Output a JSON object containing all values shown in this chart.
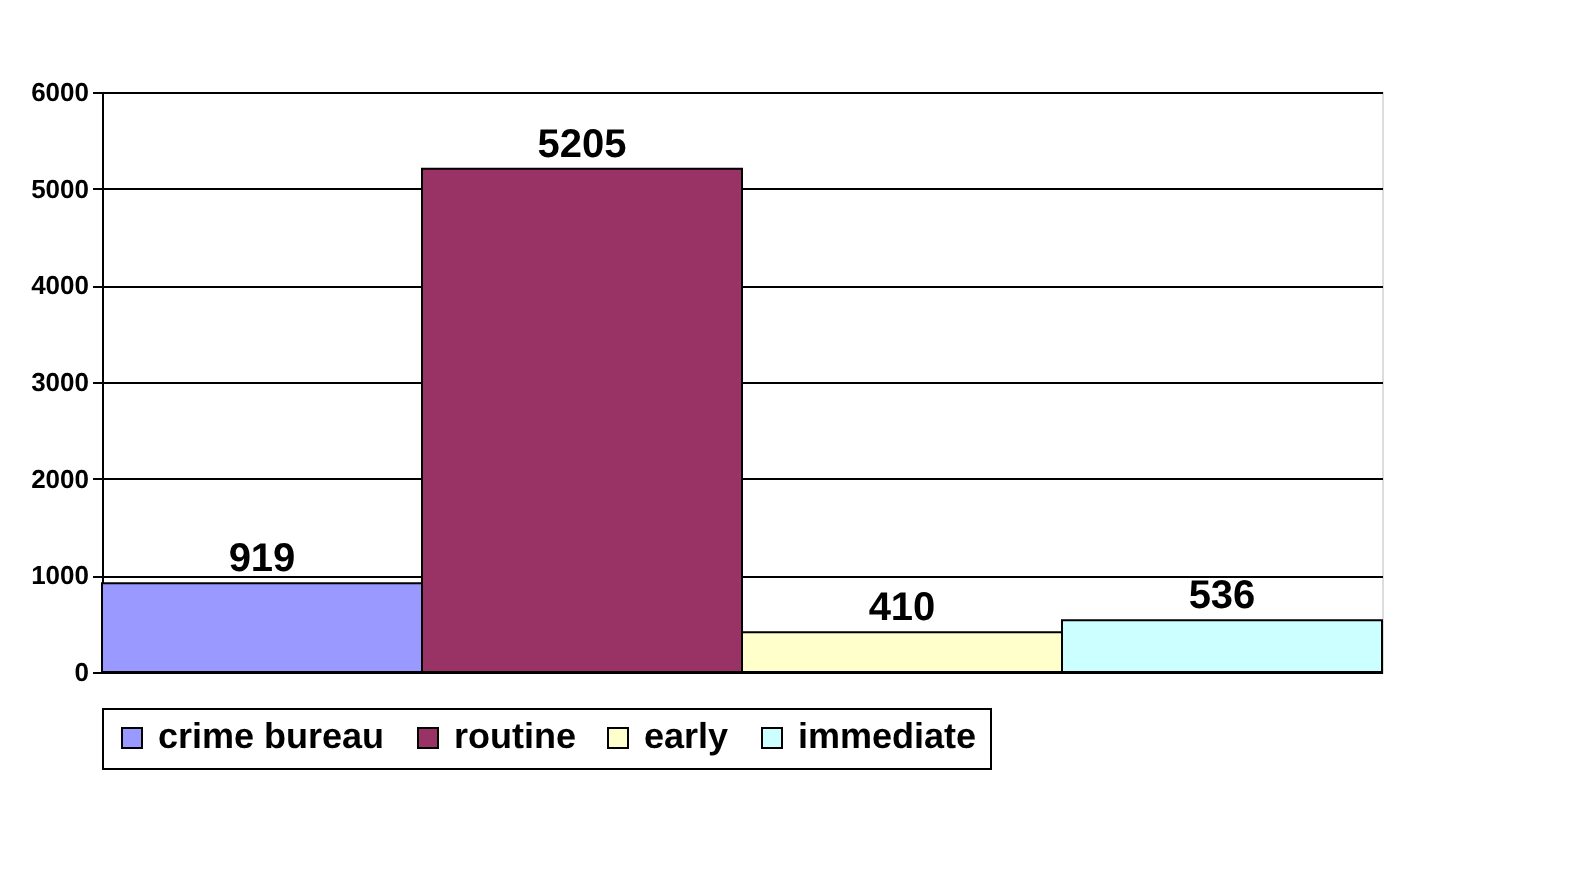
{
  "chart_data": {
    "type": "bar",
    "categories": [
      null
    ],
    "series": [
      {
        "name": "crime bureau",
        "color": "#9999ff",
        "values": [
          919
        ]
      },
      {
        "name": "routine",
        "color": "#993366",
        "values": [
          5205
        ]
      },
      {
        "name": "early",
        "color": "#ffffcc",
        "values": [
          410
        ]
      },
      {
        "name": "immediate",
        "color": "#ccffff",
        "values": [
          536
        ]
      }
    ],
    "ylim": [
      0,
      6000
    ],
    "yticks": [
      0,
      1000,
      2000,
      3000,
      4000,
      5000,
      6000
    ],
    "grid": "y",
    "legend": "bottom",
    "data_labels": true
  }
}
